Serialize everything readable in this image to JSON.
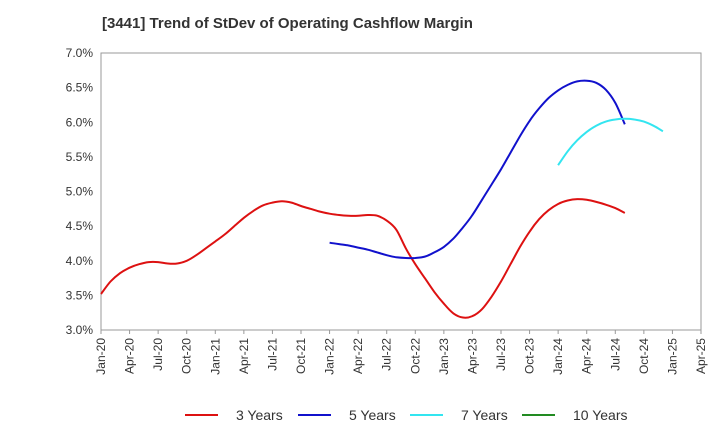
{
  "title": "[3441]  Trend of StDev of Operating Cashflow Margin",
  "chart_data": {
    "type": "line",
    "title": "[3441]  Trend of StDev of Operating Cashflow Margin",
    "xlabel": "",
    "ylabel": "",
    "x_ticks": [
      "Jan-20",
      "Apr-20",
      "Jul-20",
      "Oct-20",
      "Jan-21",
      "Apr-21",
      "Jul-21",
      "Oct-21",
      "Jan-22",
      "Apr-22",
      "Jul-22",
      "Oct-22",
      "Jan-23",
      "Apr-23",
      "Jul-23",
      "Oct-23",
      "Jan-24",
      "Apr-24",
      "Jul-24",
      "Oct-24",
      "Jan-25",
      "Apr-25"
    ],
    "y_ticks": [
      "3.0%",
      "3.5%",
      "4.0%",
      "4.5%",
      "5.0%",
      "5.5%",
      "6.0%",
      "6.5%",
      "7.0%"
    ],
    "ylim": [
      3.0,
      7.0
    ],
    "grid": true,
    "legend_position": "bottom",
    "series": [
      {
        "name": "3 Years",
        "color": "#dd1111",
        "start_index": 0,
        "values": [
          3.52,
          3.7,
          3.82,
          3.9,
          3.95,
          3.98,
          3.98,
          3.96,
          3.96,
          4.0,
          4.08,
          4.18,
          4.28,
          4.38,
          4.5,
          4.62,
          4.72,
          4.8,
          4.84,
          4.86,
          4.84,
          4.79,
          4.75,
          4.71,
          4.68,
          4.66,
          4.65,
          4.65,
          4.66,
          4.65,
          4.58,
          4.45,
          4.18,
          3.95,
          3.75,
          3.55,
          3.38,
          3.24,
          3.18,
          3.2,
          3.3,
          3.48,
          3.7,
          3.95,
          4.2,
          4.42,
          4.6,
          4.73,
          4.82,
          4.87,
          4.89,
          4.88,
          4.85,
          4.81,
          4.76,
          4.69
        ]
      },
      {
        "name": "5 Years",
        "color": "#1111cc",
        "start_index": 24,
        "values": [
          4.26,
          4.24,
          4.22,
          4.19,
          4.16,
          4.12,
          4.08,
          4.05,
          4.04,
          4.04,
          4.06,
          4.12,
          4.2,
          4.32,
          4.48,
          4.66,
          4.88,
          5.1,
          5.32,
          5.56,
          5.8,
          6.02,
          6.2,
          6.35,
          6.46,
          6.54,
          6.59,
          6.6,
          6.57,
          6.47,
          6.28,
          5.97
        ]
      },
      {
        "name": "7 Years",
        "color": "#33e5f0",
        "start_index": 48,
        "values": [
          5.38,
          5.58,
          5.74,
          5.86,
          5.95,
          6.01,
          6.04,
          6.05,
          6.04,
          6.01,
          5.95,
          5.87
        ]
      },
      {
        "name": "10 Years",
        "color": "#228b22",
        "start_index": 0,
        "values": []
      }
    ]
  }
}
